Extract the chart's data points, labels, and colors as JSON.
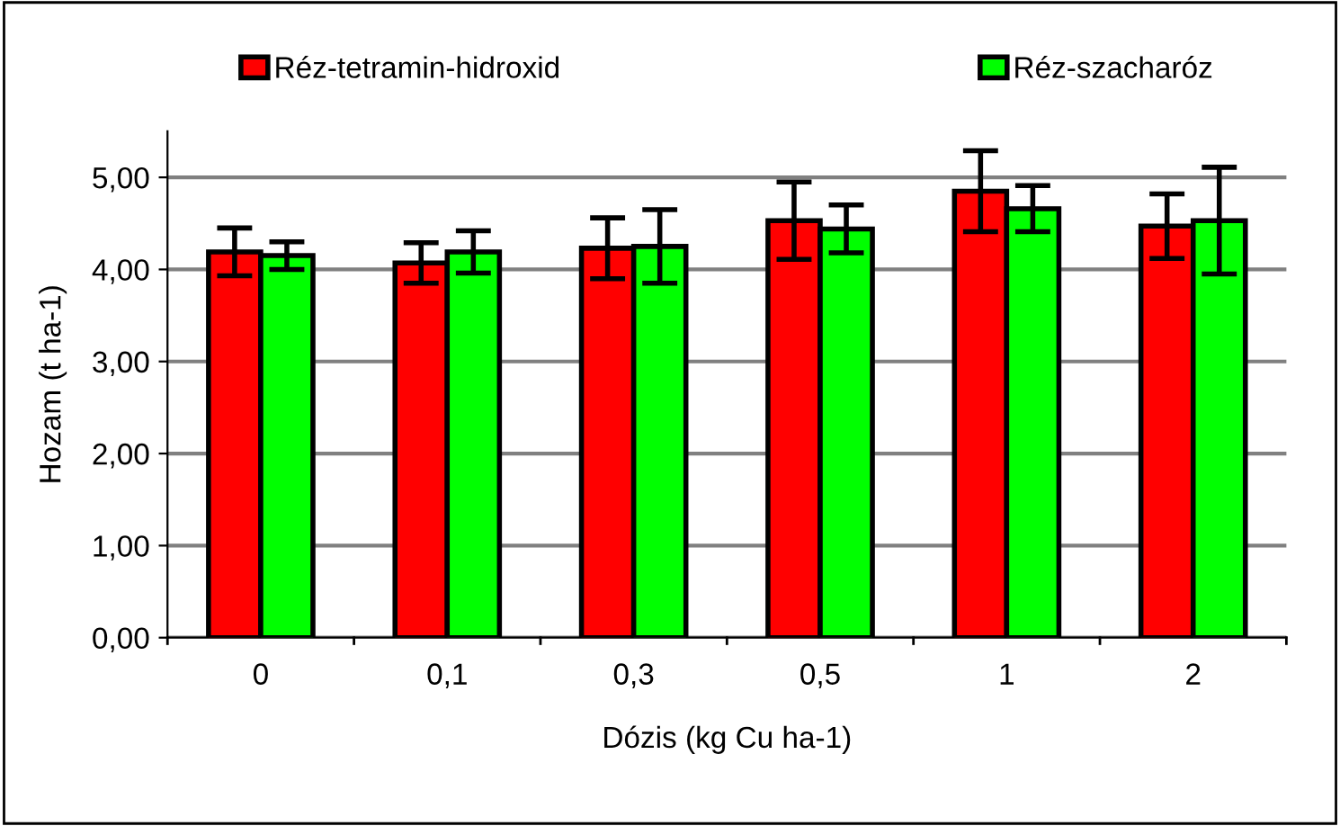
{
  "chart_data": {
    "type": "bar",
    "xlabel": "Dózis (kg Cu ha-1)",
    "ylabel": "Hozam (t ha-1)",
    "categories": [
      "0",
      "0,1",
      "0,3",
      "0,5",
      "1",
      "2"
    ],
    "series": [
      {
        "name": "Réz-tetramin-hidroxid",
        "color": "#ff0000",
        "values": [
          4.19,
          4.07,
          4.23,
          4.53,
          4.85,
          4.47
        ],
        "errors": [
          0.26,
          0.22,
          0.33,
          0.42,
          0.44,
          0.35
        ]
      },
      {
        "name": "Réz-szacharóz",
        "color": "#00ff00",
        "values": [
          4.15,
          4.19,
          4.25,
          4.44,
          4.66,
          4.53
        ],
        "errors": [
          0.15,
          0.23,
          0.4,
          0.26,
          0.25,
          0.58
        ]
      }
    ],
    "ylim": [
      0,
      5.5
    ],
    "yticks": [
      {
        "value": 0,
        "label": "0,00"
      },
      {
        "value": 1,
        "label": "1,00"
      },
      {
        "value": 2,
        "label": "2,00"
      },
      {
        "value": 3,
        "label": "3,00"
      },
      {
        "value": 4,
        "label": "4,00"
      },
      {
        "value": 5,
        "label": "5,00"
      }
    ],
    "grid": "y",
    "legend": "top"
  }
}
